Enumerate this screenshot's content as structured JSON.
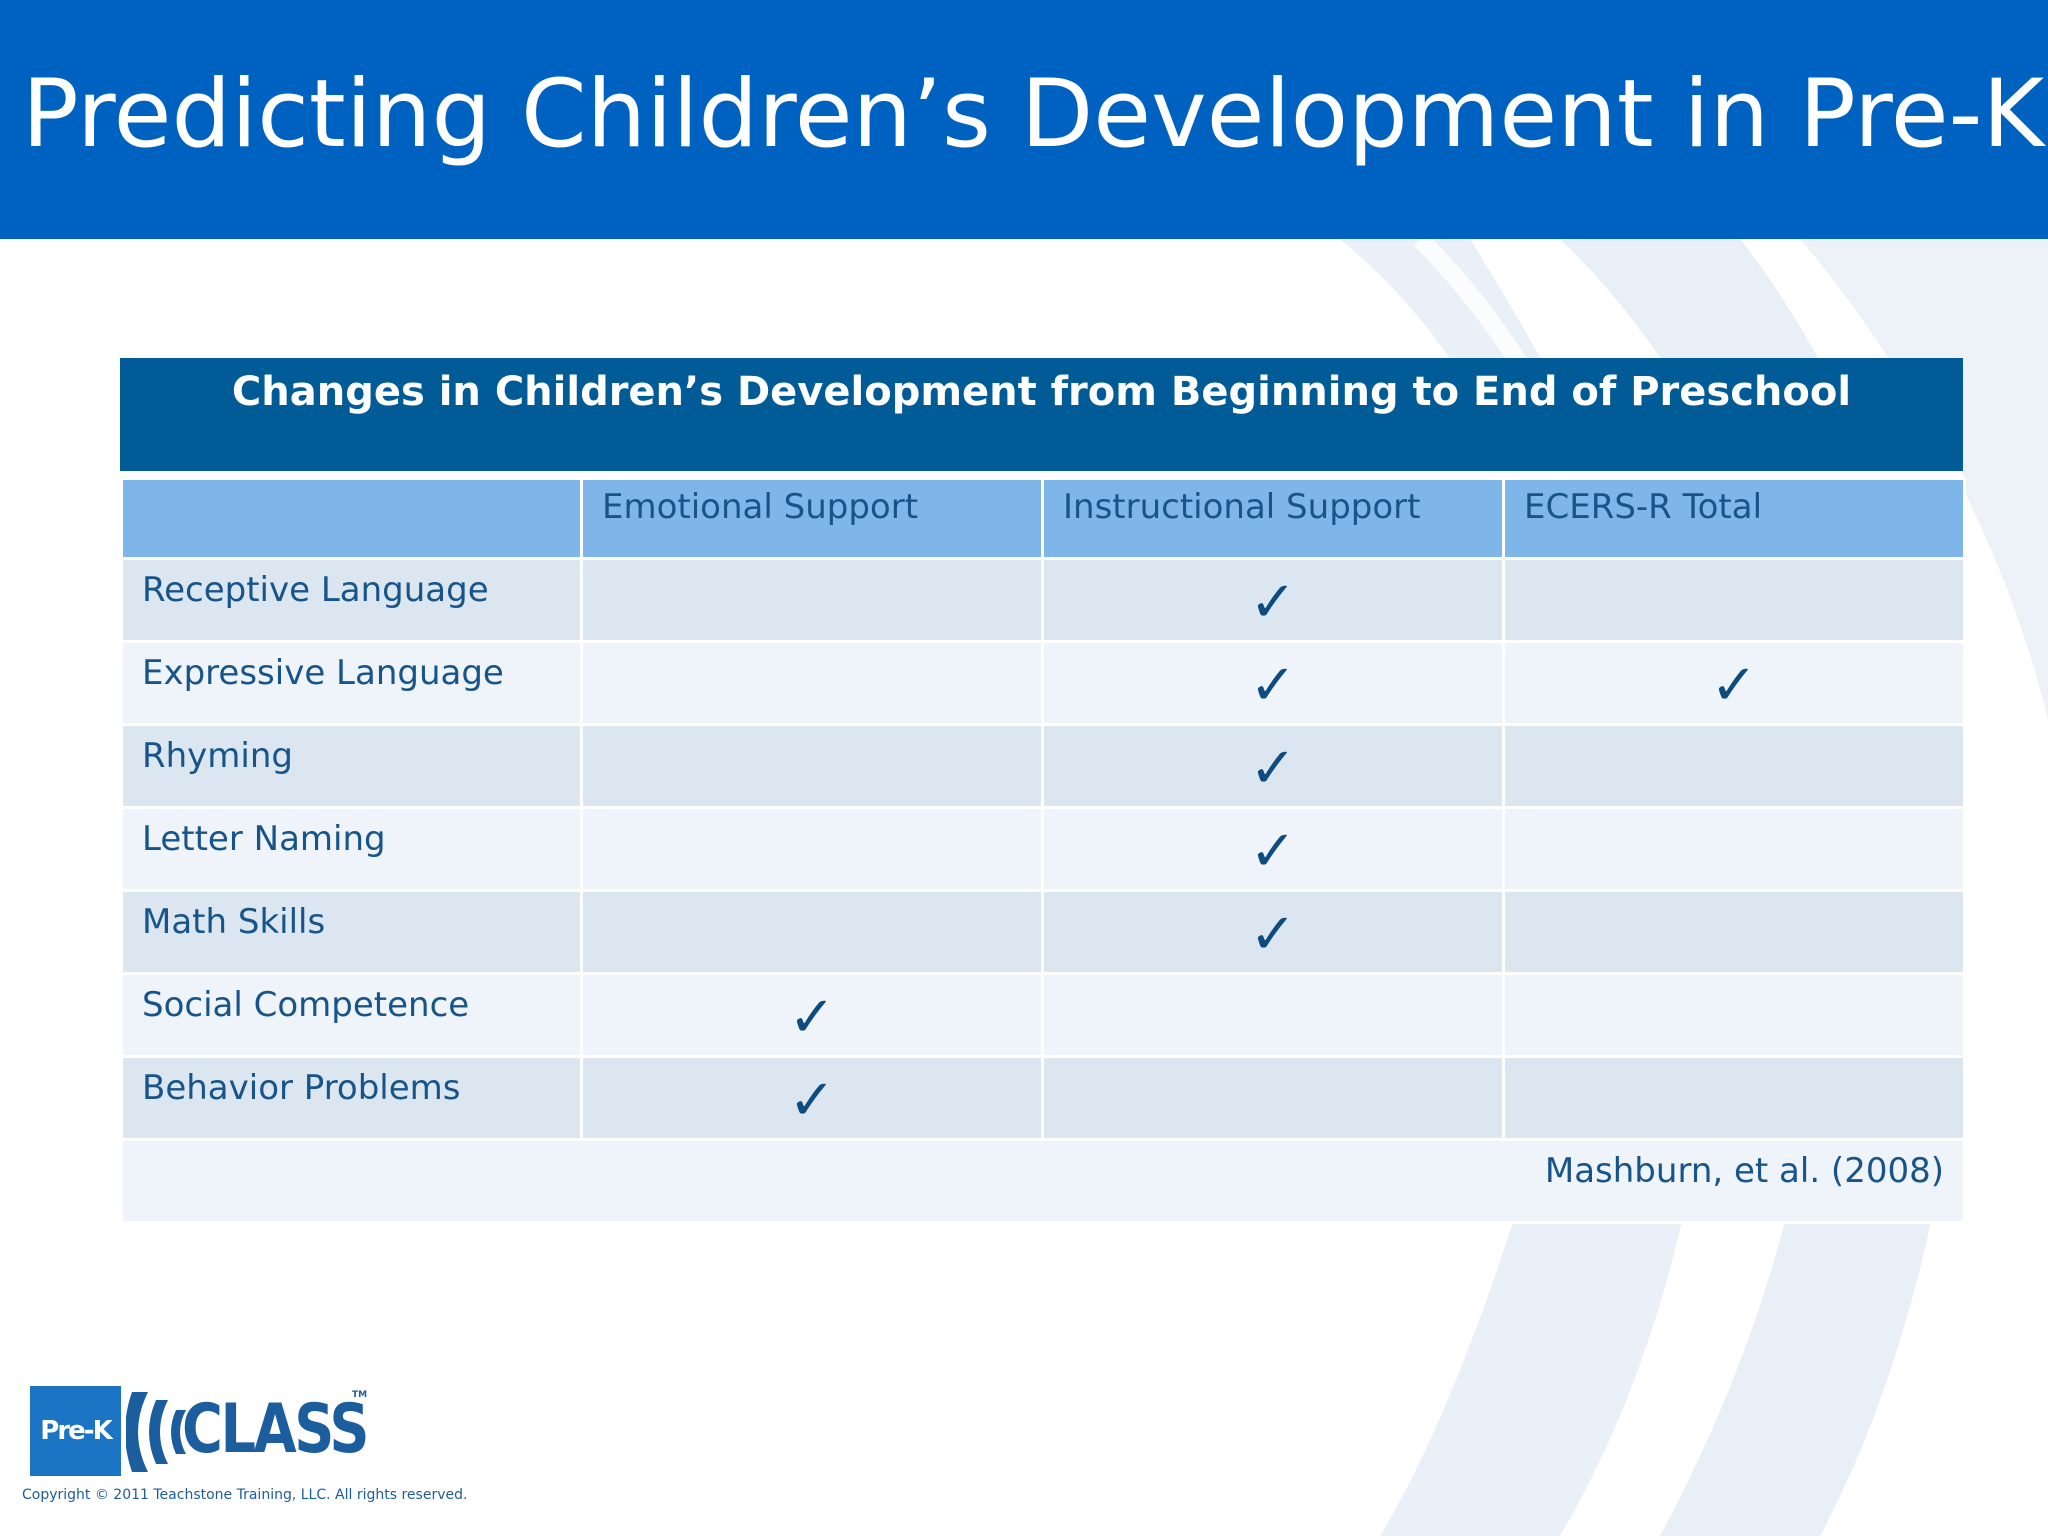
{
  "slide": {
    "title": "Predicting Children’s Development in Pre-K"
  },
  "table": {
    "header": "Changes in Children’s Development from Beginning to End of Preschool",
    "columns": [
      "",
      "Emotional Support",
      "Instructional Support",
      "ECERS-R Total"
    ],
    "check_symbol": "✓",
    "rows": [
      {
        "label": "Receptive Language",
        "emotional": "",
        "instructional": "✓",
        "ecers": ""
      },
      {
        "label": "Expressive Language",
        "emotional": "",
        "instructional": "✓",
        "ecers": "✓"
      },
      {
        "label": "Rhyming",
        "emotional": "",
        "instructional": "✓",
        "ecers": ""
      },
      {
        "label": "Letter Naming",
        "emotional": "",
        "instructional": "✓",
        "ecers": ""
      },
      {
        "label": "Math Skills",
        "emotional": "",
        "instructional": "✓",
        "ecers": ""
      },
      {
        "label": "Social Competence",
        "emotional": "✓",
        "instructional": "",
        "ecers": ""
      },
      {
        "label": "Behavior Problems",
        "emotional": "✓",
        "instructional": "",
        "ecers": ""
      }
    ],
    "citation": "Mashburn, et al. (2008)"
  },
  "footer": {
    "logo_prek": "Pre-K",
    "logo_class": "CLASS",
    "logo_tm": "TM",
    "copyright": "Copyright © 2011 Teachstone Training, LLC. All rights reserved."
  },
  "colors": {
    "title_bar": "#0062c0",
    "table_header": "#005b96",
    "column_header": "#7fb6ea",
    "row_odd": "#dbe6f1",
    "row_even": "#eff4fa",
    "text": "#17548a"
  }
}
